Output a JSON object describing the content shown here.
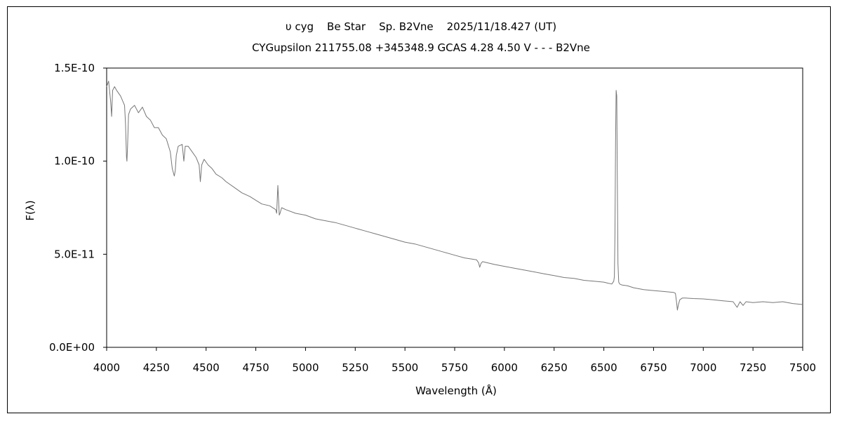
{
  "chart_data": {
    "type": "line",
    "title": "υ cyg    Be Star    Sp. B2Vne    2025/11/18.427 (UT)",
    "subtitle": "CYGupsilon 211755.08 +345348.9 GCAS 4.28 4.50 V - - - B2Vne",
    "xlabel": "Wavelength (Å)",
    "ylabel": "F(λ)",
    "xlim": [
      4000,
      7500
    ],
    "ylim": [
      0,
      1.5e-10
    ],
    "x_ticks": [
      4000,
      4250,
      4500,
      4750,
      5000,
      5250,
      5500,
      5750,
      6000,
      6250,
      6500,
      6750,
      7000,
      7250,
      7500
    ],
    "x_tick_labels": [
      "4000",
      "4250",
      "4500",
      "4750",
      "5000",
      "5250",
      "5500",
      "5750",
      "6000",
      "6250",
      "6500",
      "6750",
      "7000",
      "7250",
      "7500"
    ],
    "y_ticks": [
      0,
      5e-11,
      1e-10,
      1.5e-10
    ],
    "y_tick_labels": [
      "0.0E+00",
      "5.0E-11",
      "1.0E-10",
      "1.5E-10"
    ],
    "grid": false,
    "legend": false,
    "line_color": "#777777",
    "series": [
      {
        "x": [
          4000,
          4010,
          4020,
          4025,
          4030,
          4040,
          4050,
          4070,
          4090,
          4095,
          4100,
          4102,
          4105,
          4110,
          4120,
          4140,
          4160,
          4180,
          4200,
          4220,
          4240,
          4260,
          4280,
          4300,
          4320,
          4330,
          4340,
          4345,
          4350,
          4360,
          4380,
          4388,
          4395,
          4410,
          4430,
          4450,
          4465,
          4471,
          4478,
          4490,
          4510,
          4530,
          4550,
          4580,
          4600,
          4640,
          4680,
          4720,
          4750,
          4780,
          4820,
          4850,
          4855,
          4858,
          4861,
          4864,
          4868,
          4872,
          4880,
          4900,
          4950,
          5000,
          5050,
          5100,
          5150,
          5200,
          5250,
          5300,
          5350,
          5400,
          5450,
          5500,
          5550,
          5600,
          5650,
          5700,
          5750,
          5800,
          5860,
          5870,
          5876,
          5882,
          5890,
          5950,
          6000,
          6050,
          6100,
          6150,
          6200,
          6250,
          6300,
          6350,
          6400,
          6450,
          6500,
          6520,
          6540,
          6550,
          6553,
          6556,
          6559,
          6562,
          6565,
          6568,
          6571,
          6575,
          6580,
          6590,
          6620,
          6650,
          6700,
          6750,
          6800,
          6850,
          6860,
          6866,
          6870,
          6875,
          6882,
          6895,
          6910,
          6950,
          7000,
          7050,
          7100,
          7150,
          7170,
          7185,
          7200,
          7215,
          7250,
          7300,
          7350,
          7400,
          7450,
          7500
        ],
        "y": [
          1.4e-10,
          1.43e-10,
          1.32e-10,
          1.24e-10,
          1.38e-10,
          1.4e-10,
          1.38e-10,
          1.35e-10,
          1.3e-10,
          1.2e-10,
          1.02e-10,
          1e-10,
          1.08e-10,
          1.25e-10,
          1.28e-10,
          1.3e-10,
          1.26e-10,
          1.29e-10,
          1.24e-10,
          1.22e-10,
          1.18e-10,
          1.18e-10,
          1.14e-10,
          1.12e-10,
          1.05e-10,
          9.6e-11,
          9.2e-11,
          9.5e-11,
          1.03e-10,
          1.08e-10,
          1.09e-10,
          1e-10,
          1.08e-10,
          1.08e-10,
          1.05e-10,
          1.02e-10,
          9.8e-11,
          8.9e-11,
          9.8e-11,
          1.01e-10,
          9.8e-11,
          9.6e-11,
          9.3e-11,
          9.1e-11,
          8.9e-11,
          8.6e-11,
          8.3e-11,
          8.1e-11,
          7.9e-11,
          7.7e-11,
          7.6e-11,
          7.4e-11,
          7.2e-11,
          8e-11,
          8.7e-11,
          8e-11,
          7.1e-11,
          7.2e-11,
          7.5e-11,
          7.4e-11,
          7.2e-11,
          7.1e-11,
          6.9e-11,
          6.8e-11,
          6.7e-11,
          6.55e-11,
          6.4e-11,
          6.25e-11,
          6.1e-11,
          5.95e-11,
          5.8e-11,
          5.65e-11,
          5.55e-11,
          5.4e-11,
          5.25e-11,
          5.1e-11,
          4.95e-11,
          4.8e-11,
          4.7e-11,
          4.55e-11,
          4.3e-11,
          4.5e-11,
          4.6e-11,
          4.45e-11,
          4.35e-11,
          4.25e-11,
          4.15e-11,
          4.05e-11,
          3.95e-11,
          3.85e-11,
          3.75e-11,
          3.7e-11,
          3.6e-11,
          3.55e-11,
          3.5e-11,
          3.45e-11,
          3.4e-11,
          3.55e-11,
          3.8e-11,
          6e-11,
          1.1e-10,
          1.38e-10,
          1.35e-10,
          9e-11,
          4.5e-11,
          3.5e-11,
          3.4e-11,
          3.35e-11,
          3.3e-11,
          3.2e-11,
          3.1e-11,
          3.05e-11,
          3e-11,
          2.95e-11,
          2.9e-11,
          2.4e-11,
          2e-11,
          2.3e-11,
          2.55e-11,
          2.65e-11,
          2.65e-11,
          2.62e-11,
          2.6e-11,
          2.55e-11,
          2.5e-11,
          2.45e-11,
          2.15e-11,
          2.45e-11,
          2.25e-11,
          2.45e-11,
          2.4e-11,
          2.45e-11,
          2.4e-11,
          2.45e-11,
          2.35e-11,
          2.3e-11
        ]
      }
    ]
  }
}
